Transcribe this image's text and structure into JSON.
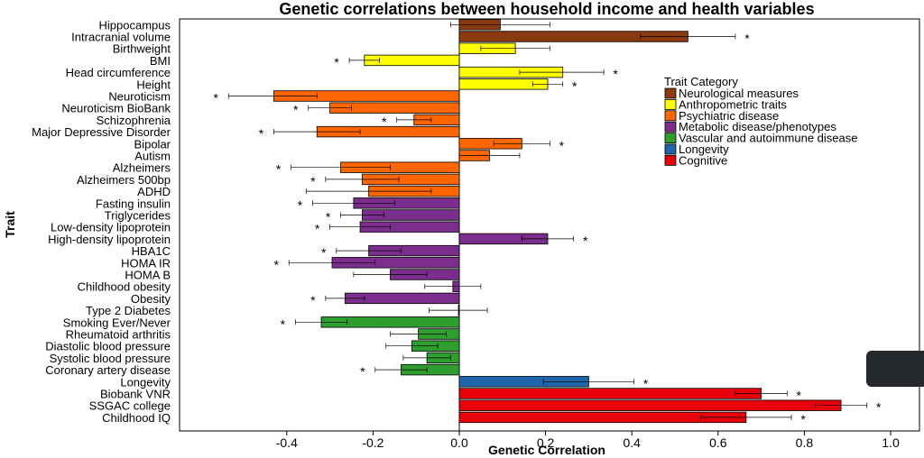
{
  "chart_data": {
    "type": "bar",
    "orientation": "horizontal",
    "title": "Genetic correlations between household income and health variables",
    "xlabel": "Genetic Correlation",
    "ylabel": "Trait",
    "xlim": [
      -0.63,
      1.07
    ],
    "xticks": [
      -0.4,
      -0.2,
      0.0,
      0.2,
      0.4,
      0.6,
      0.8,
      1.0
    ],
    "xtick_labels": [
      "-0.4",
      "-0.2",
      "0.0",
      "0.2",
      "0.4",
      "0.6",
      "0.8",
      "1.0"
    ],
    "grid": false,
    "significance_marker": "*",
    "legend": {
      "title": "Trait Category",
      "placement": "right",
      "entries": [
        {
          "name": "Neurological measures",
          "color": "#8B3A0F"
        },
        {
          "name": "Anthropometric traits",
          "color": "#FFFF00"
        },
        {
          "name": "Psychiatric disease",
          "color": "#FF6600"
        },
        {
          "name": "Metabolic disease/phenotypes",
          "color": "#7B2E8E"
        },
        {
          "name": "Vascular and autoimmune disease",
          "color": "#2E9E2E"
        },
        {
          "name": "Longevity",
          "color": "#2166AC"
        },
        {
          "name": "Cognitive",
          "color": "#E8000B"
        }
      ]
    },
    "traits": [
      {
        "name": "Hippocampus",
        "value": 0.095,
        "ci": [
          -0.02,
          0.21
        ],
        "category": 0,
        "sig": false
      },
      {
        "name": "Intracranial volume",
        "value": 0.53,
        "ci": [
          0.42,
          0.64
        ],
        "category": 0,
        "sig": true
      },
      {
        "name": "Birthweight",
        "value": 0.13,
        "ci": [
          0.05,
          0.21
        ],
        "category": 1,
        "sig": false
      },
      {
        "name": "BMI",
        "value": -0.22,
        "ci": [
          -0.255,
          -0.185
        ],
        "category": 1,
        "sig": true
      },
      {
        "name": "Head circumference",
        "value": 0.24,
        "ci": [
          0.14,
          0.335
        ],
        "category": 1,
        "sig": true
      },
      {
        "name": "Height",
        "value": 0.205,
        "ci": [
          0.17,
          0.24
        ],
        "category": 1,
        "sig": true
      },
      {
        "name": "Neuroticism",
        "value": -0.43,
        "ci": [
          -0.535,
          -0.33
        ],
        "category": 2,
        "sig": true
      },
      {
        "name": "Neuroticism BioBank",
        "value": -0.3,
        "ci": [
          -0.35,
          -0.25
        ],
        "category": 2,
        "sig": true
      },
      {
        "name": "Schizophrenia",
        "value": -0.105,
        "ci": [
          -0.145,
          -0.065
        ],
        "category": 2,
        "sig": true
      },
      {
        "name": "Major Depressive Disorder",
        "value": -0.33,
        "ci": [
          -0.43,
          -0.23
        ],
        "category": 2,
        "sig": true
      },
      {
        "name": "Bipolar",
        "value": 0.145,
        "ci": [
          0.08,
          0.21
        ],
        "category": 2,
        "sig": true
      },
      {
        "name": "Autism",
        "value": 0.07,
        "ci": [
          0.0,
          0.14
        ],
        "category": 2,
        "sig": false
      },
      {
        "name": "Alzheimers",
        "value": -0.275,
        "ci": [
          -0.39,
          -0.16
        ],
        "category": 2,
        "sig": true
      },
      {
        "name": "Alzheimers 500bp",
        "value": -0.225,
        "ci": [
          -0.31,
          -0.14
        ],
        "category": 2,
        "sig": true
      },
      {
        "name": "ADHD",
        "value": -0.21,
        "ci": [
          -0.355,
          -0.065
        ],
        "category": 2,
        "sig": false
      },
      {
        "name": "Fasting insulin",
        "value": -0.245,
        "ci": [
          -0.34,
          -0.15
        ],
        "category": 3,
        "sig": true
      },
      {
        "name": "Triglycerides",
        "value": -0.225,
        "ci": [
          -0.275,
          -0.175
        ],
        "category": 3,
        "sig": true
      },
      {
        "name": "Low-density lipoprotein",
        "value": -0.23,
        "ci": [
          -0.3,
          -0.16
        ],
        "category": 3,
        "sig": true
      },
      {
        "name": "High-density lipoprotein",
        "value": 0.205,
        "ci": [
          0.145,
          0.265
        ],
        "category": 3,
        "sig": true
      },
      {
        "name": "HBA1C",
        "value": -0.21,
        "ci": [
          -0.285,
          -0.135
        ],
        "category": 3,
        "sig": true
      },
      {
        "name": "HOMA IR",
        "value": -0.295,
        "ci": [
          -0.395,
          -0.195
        ],
        "category": 3,
        "sig": true
      },
      {
        "name": "HOMA B",
        "value": -0.16,
        "ci": [
          -0.245,
          -0.075
        ],
        "category": 3,
        "sig": false
      },
      {
        "name": "Childhood obesity",
        "value": -0.015,
        "ci": [
          -0.08,
          0.05
        ],
        "category": 3,
        "sig": false
      },
      {
        "name": "Obesity",
        "value": -0.265,
        "ci": [
          -0.31,
          -0.22
        ],
        "category": 3,
        "sig": true
      },
      {
        "name": "Type 2 Diabetes",
        "value": -0.002,
        "ci": [
          -0.07,
          0.065
        ],
        "category": 3,
        "sig": false
      },
      {
        "name": "Smoking Ever/Never",
        "value": -0.32,
        "ci": [
          -0.38,
          -0.26
        ],
        "category": 4,
        "sig": true
      },
      {
        "name": "Rheumatoid arthritis",
        "value": -0.095,
        "ci": [
          -0.16,
          -0.03
        ],
        "category": 4,
        "sig": false
      },
      {
        "name": "Diastolic blood pressure",
        "value": -0.11,
        "ci": [
          -0.17,
          -0.05
        ],
        "category": 4,
        "sig": false
      },
      {
        "name": "Systolic blood pressure",
        "value": -0.075,
        "ci": [
          -0.13,
          -0.02
        ],
        "category": 4,
        "sig": false
      },
      {
        "name": "Coronary artery disease",
        "value": -0.135,
        "ci": [
          -0.195,
          -0.075
        ],
        "category": 4,
        "sig": true
      },
      {
        "name": "Longevity",
        "value": 0.3,
        "ci": [
          0.195,
          0.405
        ],
        "category": 5,
        "sig": true
      },
      {
        "name": "Biobank VNR",
        "value": 0.7,
        "ci": [
          0.64,
          0.76
        ],
        "category": 6,
        "sig": true
      },
      {
        "name": "SSGAC college",
        "value": 0.885,
        "ci": [
          0.825,
          0.945
        ],
        "category": 6,
        "sig": true
      },
      {
        "name": "Childhood IQ",
        "value": 0.665,
        "ci": [
          0.56,
          0.77
        ],
        "category": 6,
        "sig": true
      }
    ]
  }
}
